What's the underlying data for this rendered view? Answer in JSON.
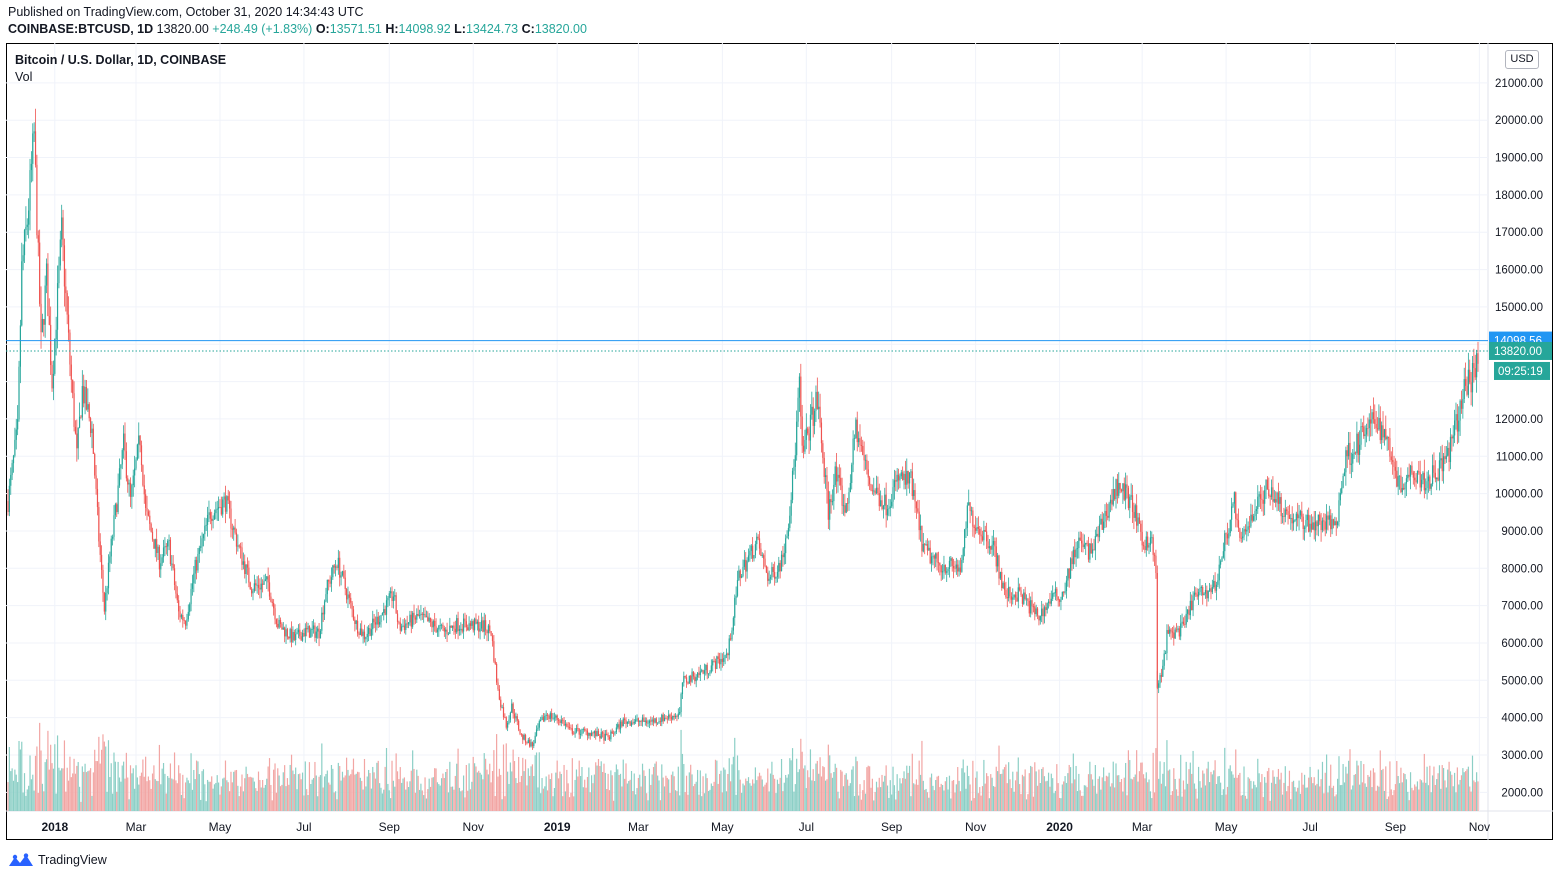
{
  "header": {
    "published": "Published on TradingView.com, October 31, 2020 14:34:43 UTC",
    "symbol": "COINBASE:BTCUSD, 1D",
    "last": "13820.00",
    "change": "+248.49 (+1.83%)",
    "o_label": "O:",
    "o": "13571.51",
    "h_label": "H:",
    "h": "14098.92",
    "l_label": "L:",
    "l": "13424.73",
    "c_label": "C:",
    "c": "13820.00"
  },
  "legend": {
    "title": "Bitcoin / U.S. Dollar, 1D, COINBASE",
    "volume": "Vol"
  },
  "currency": "USD",
  "footer": {
    "brand": "TradingView"
  },
  "colors": {
    "up": "#26a69a",
    "down": "#ef5350",
    "up_volume": "#8ccfc6",
    "down_volume": "#f2a5a3",
    "line": "#2196f3",
    "grid": "#f0f3fa"
  },
  "chart_data": {
    "type": "candlestick",
    "title": "Bitcoin / U.S. Dollar, 1D, COINBASE",
    "x_range": [
      "2017-11-28",
      "2020-10-31"
    ],
    "y_range": [
      1500,
      21800
    ],
    "y_ticks": [
      2000,
      3000,
      4000,
      5000,
      6000,
      7000,
      8000,
      9000,
      10000,
      11000,
      12000,
      13000,
      14000,
      15000,
      16000,
      17000,
      18000,
      19000,
      20000,
      21000
    ],
    "y_tick_labels": [
      "2000.00",
      "3000.00",
      "4000.00",
      "5000.00",
      "6000.00",
      "7000.00",
      "8000.00",
      "9000.00",
      "10000.00",
      "11000.00",
      "12000.00",
      "",
      "",
      "15000.00",
      "16000.00",
      "17000.00",
      "18000.00",
      "19000.00",
      "20000.00",
      "21000.00"
    ],
    "x_ticks": [
      {
        "date": "2018-01-01",
        "label": "2018",
        "bold": true
      },
      {
        "date": "2018-03-01",
        "label": "Mar"
      },
      {
        "date": "2018-05-01",
        "label": "May"
      },
      {
        "date": "2018-07-01",
        "label": "Jul"
      },
      {
        "date": "2018-09-01",
        "label": "Sep"
      },
      {
        "date": "2018-11-01",
        "label": "Nov"
      },
      {
        "date": "2019-01-01",
        "label": "2019",
        "bold": true
      },
      {
        "date": "2019-03-01",
        "label": "Mar"
      },
      {
        "date": "2019-05-01",
        "label": "May"
      },
      {
        "date": "2019-07-01",
        "label": "Jul"
      },
      {
        "date": "2019-09-01",
        "label": "Sep"
      },
      {
        "date": "2019-11-01",
        "label": "Nov"
      },
      {
        "date": "2020-01-01",
        "label": "2020",
        "bold": true
      },
      {
        "date": "2020-03-01",
        "label": "Mar"
      },
      {
        "date": "2020-05-01",
        "label": "May"
      },
      {
        "date": "2020-07-01",
        "label": "Jul"
      },
      {
        "date": "2020-09-01",
        "label": "Sep"
      },
      {
        "date": "2020-11-01",
        "label": "Nov"
      }
    ],
    "close_path": [
      [
        "2017-11-28",
        9800
      ],
      [
        "2017-12-05",
        11700
      ],
      [
        "2017-12-08",
        16000
      ],
      [
        "2017-12-12",
        17300
      ],
      [
        "2017-12-17",
        19600
      ],
      [
        "2017-12-22",
        14000
      ],
      [
        "2017-12-26",
        15800
      ],
      [
        "2017-12-30",
        13000
      ],
      [
        "2018-01-06",
        17000
      ],
      [
        "2018-01-12",
        13500
      ],
      [
        "2018-01-17",
        11000
      ],
      [
        "2018-01-21",
        12800
      ],
      [
        "2018-01-28",
        11700
      ],
      [
        "2018-02-02",
        8800
      ],
      [
        "2018-02-06",
        6900
      ],
      [
        "2018-02-10",
        8300
      ],
      [
        "2018-02-20",
        11300
      ],
      [
        "2018-02-25",
        9800
      ],
      [
        "2018-03-04",
        11500
      ],
      [
        "2018-03-08",
        9500
      ],
      [
        "2018-03-18",
        8200
      ],
      [
        "2018-03-25",
        8600
      ],
      [
        "2018-04-01",
        6800
      ],
      [
        "2018-04-06",
        6600
      ],
      [
        "2018-04-13",
        8000
      ],
      [
        "2018-04-24",
        9500
      ],
      [
        "2018-05-05",
        9800
      ],
      [
        "2018-05-15",
        8500
      ],
      [
        "2018-05-24",
        7500
      ],
      [
        "2018-06-05",
        7600
      ],
      [
        "2018-06-12",
        6500
      ],
      [
        "2018-06-24",
        6100
      ],
      [
        "2018-07-01",
        6300
      ],
      [
        "2018-07-12",
        6300
      ],
      [
        "2018-07-17",
        7400
      ],
      [
        "2018-07-25",
        8200
      ],
      [
        "2018-08-08",
        6500
      ],
      [
        "2018-08-14",
        6200
      ],
      [
        "2018-08-25",
        6700
      ],
      [
        "2018-09-04",
        7300
      ],
      [
        "2018-09-08",
        6400
      ],
      [
        "2018-09-22",
        6700
      ],
      [
        "2018-10-11",
        6300
      ],
      [
        "2018-10-20",
        6500
      ],
      [
        "2018-11-08",
        6450
      ],
      [
        "2018-11-14",
        6300
      ],
      [
        "2018-11-19",
        4700
      ],
      [
        "2018-11-25",
        3800
      ],
      [
        "2018-11-29",
        4300
      ],
      [
        "2018-12-06",
        3500
      ],
      [
        "2018-12-14",
        3250
      ],
      [
        "2018-12-19",
        3800
      ],
      [
        "2018-12-24",
        4100
      ],
      [
        "2019-01-05",
        3900
      ],
      [
        "2019-01-10",
        3650
      ],
      [
        "2019-01-25",
        3600
      ],
      [
        "2019-02-07",
        3450
      ],
      [
        "2019-02-18",
        3900
      ],
      [
        "2019-03-10",
        3900
      ],
      [
        "2019-03-31",
        4100
      ],
      [
        "2019-04-02",
        4950
      ],
      [
        "2019-04-20",
        5300
      ],
      [
        "2019-05-05",
        5700
      ],
      [
        "2019-05-13",
        7800
      ],
      [
        "2019-05-26",
        8700
      ],
      [
        "2019-06-04",
        7700
      ],
      [
        "2019-06-13",
        8200
      ],
      [
        "2019-06-18",
        9300
      ],
      [
        "2019-06-22",
        10700
      ],
      [
        "2019-06-26",
        12900
      ],
      [
        "2019-06-28",
        11000
      ],
      [
        "2019-07-04",
        11900
      ],
      [
        "2019-07-09",
        12500
      ],
      [
        "2019-07-13",
        11000
      ],
      [
        "2019-07-17",
        9500
      ],
      [
        "2019-07-22",
        10500
      ],
      [
        "2019-07-30",
        9500
      ],
      [
        "2019-08-06",
        11800
      ],
      [
        "2019-08-11",
        11000
      ],
      [
        "2019-08-17",
        10200
      ],
      [
        "2019-08-28",
        9700
      ],
      [
        "2019-09-06",
        10400
      ],
      [
        "2019-09-15",
        10300
      ],
      [
        "2019-09-24",
        8500
      ],
      [
        "2019-10-05",
        8100
      ],
      [
        "2019-10-22",
        8000
      ],
      [
        "2019-10-26",
        9600
      ],
      [
        "2019-11-01",
        9200
      ],
      [
        "2019-11-14",
        8600
      ],
      [
        "2019-11-22",
        7300
      ],
      [
        "2019-12-03",
        7300
      ],
      [
        "2019-12-17",
        6700
      ],
      [
        "2019-12-26",
        7200
      ],
      [
        "2020-01-03",
        7300
      ],
      [
        "2020-01-14",
        8700
      ],
      [
        "2020-01-24",
        8400
      ],
      [
        "2020-02-05",
        9600
      ],
      [
        "2020-02-13",
        10300
      ],
      [
        "2020-02-24",
        9600
      ],
      [
        "2020-03-01",
        8600
      ],
      [
        "2020-03-07",
        8900
      ],
      [
        "2020-03-11",
        7900
      ],
      [
        "2020-03-12",
        4800
      ],
      [
        "2020-03-16",
        5300
      ],
      [
        "2020-03-19",
        6200
      ],
      [
        "2020-03-31",
        6400
      ],
      [
        "2020-04-07",
        7200
      ],
      [
        "2020-04-23",
        7500
      ],
      [
        "2020-04-30",
        8700
      ],
      [
        "2020-05-07",
        9800
      ],
      [
        "2020-05-11",
        8600
      ],
      [
        "2020-05-20",
        9500
      ],
      [
        "2020-06-01",
        10200
      ],
      [
        "2020-06-15",
        9400
      ],
      [
        "2020-07-01",
        9200
      ],
      [
        "2020-07-20",
        9200
      ],
      [
        "2020-07-27",
        11000
      ],
      [
        "2020-08-02",
        11200
      ],
      [
        "2020-08-17",
        12000
      ],
      [
        "2020-08-27",
        11400
      ],
      [
        "2020-09-04",
        10200
      ],
      [
        "2020-09-14",
        10700
      ],
      [
        "2020-09-23",
        10300
      ],
      [
        "2020-10-08",
        10900
      ],
      [
        "2020-10-13",
        11500
      ],
      [
        "2020-10-21",
        12800
      ],
      [
        "2020-10-26",
        13050
      ],
      [
        "2020-10-31",
        13820
      ]
    ],
    "horizontal_lines": [
      {
        "label": "14098.56",
        "price": 14098.56,
        "style": "solid"
      },
      {
        "label": "13820.00",
        "price": 13820,
        "style": "dotted",
        "countdown": "09:25:19"
      }
    ]
  }
}
